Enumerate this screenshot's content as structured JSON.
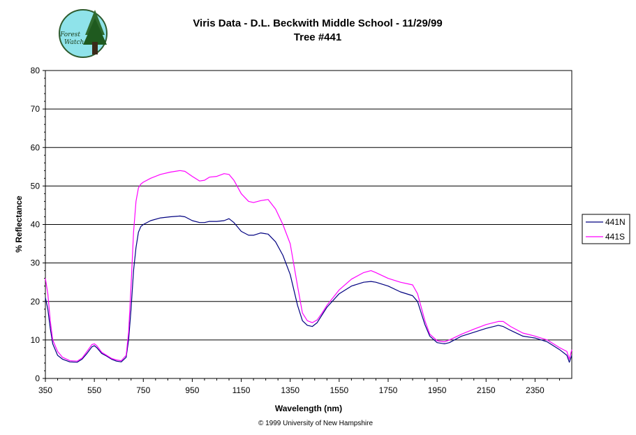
{
  "logo": {
    "line1": "Forest",
    "line2": "Watch"
  },
  "footer": "© 1999 University of New Hampshire",
  "chart_data": {
    "type": "line",
    "title": "Viris Data - D.L. Beckwith Middle School - 11/29/99",
    "subtitle": "Tree #441",
    "xlabel": "Wavelength (nm)",
    "ylabel": "% Reflectance",
    "xlim": [
      350,
      2500
    ],
    "ylim": [
      0,
      80
    ],
    "xticks": [
      350,
      550,
      750,
      950,
      1150,
      1350,
      1550,
      1750,
      1950,
      2150,
      2350
    ],
    "yticks": [
      0,
      10,
      20,
      30,
      40,
      50,
      60,
      70,
      80
    ],
    "grid": "horizontal major lines",
    "legend_position": "right",
    "series": [
      {
        "name": "441N",
        "color": "#000080",
        "x": [
          350,
          360,
          370,
          380,
          400,
          420,
          450,
          480,
          500,
          520,
          540,
          550,
          560,
          580,
          600,
          620,
          640,
          660,
          680,
          690,
          700,
          710,
          720,
          730,
          740,
          750,
          780,
          820,
          860,
          900,
          920,
          950,
          980,
          1000,
          1020,
          1050,
          1080,
          1100,
          1120,
          1150,
          1180,
          1200,
          1230,
          1260,
          1290,
          1320,
          1350,
          1380,
          1400,
          1420,
          1440,
          1460,
          1480,
          1500,
          1550,
          1600,
          1650,
          1680,
          1700,
          1750,
          1800,
          1850,
          1870,
          1900,
          1920,
          1950,
          1980,
          2000,
          2050,
          2100,
          2150,
          2200,
          2220,
          2250,
          2300,
          2350,
          2400,
          2450,
          2480,
          2490,
          2500
        ],
        "values": [
          21,
          18,
          13,
          9,
          6,
          5,
          4.3,
          4.2,
          5,
          6.5,
          8.2,
          8.5,
          8,
          6.5,
          5.8,
          5,
          4.5,
          4.3,
          5.5,
          10,
          18,
          28,
          34,
          38,
          39.5,
          40,
          41,
          41.7,
          42,
          42.2,
          42,
          41,
          40.5,
          40.5,
          40.8,
          40.8,
          41,
          41.5,
          40.5,
          38.2,
          37.2,
          37.2,
          37.8,
          37.5,
          35.5,
          32,
          27,
          19,
          15,
          13.8,
          13.5,
          14.5,
          16.5,
          18.5,
          22,
          24,
          25,
          25.2,
          25,
          24,
          22.5,
          21.5,
          20,
          14,
          11,
          9.3,
          9,
          9.3,
          11,
          12,
          13,
          13.8,
          13.5,
          12.5,
          11,
          10.5,
          9.5,
          7.5,
          6,
          4.2,
          6
        ]
      },
      {
        "name": "441S",
        "color": "#ff00ff",
        "x": [
          350,
          360,
          370,
          380,
          400,
          420,
          450,
          480,
          500,
          520,
          540,
          550,
          560,
          580,
          600,
          620,
          640,
          660,
          680,
          690,
          700,
          710,
          720,
          730,
          740,
          750,
          780,
          820,
          860,
          900,
          920,
          950,
          980,
          1000,
          1020,
          1050,
          1080,
          1100,
          1120,
          1150,
          1180,
          1200,
          1230,
          1260,
          1290,
          1320,
          1350,
          1380,
          1400,
          1420,
          1440,
          1460,
          1480,
          1500,
          1550,
          1600,
          1650,
          1680,
          1700,
          1750,
          1800,
          1850,
          1870,
          1900,
          1920,
          1950,
          1980,
          2000,
          2050,
          2100,
          2150,
          2200,
          2220,
          2250,
          2300,
          2350,
          2400,
          2450,
          2480,
          2490,
          2500
        ],
        "values": [
          26,
          22,
          15,
          10,
          7,
          5.5,
          4.6,
          4.5,
          5.3,
          7,
          8.8,
          9,
          8.5,
          6.8,
          6,
          5.2,
          4.8,
          4.6,
          6,
          12,
          24,
          38,
          46,
          49.5,
          50.5,
          51,
          52,
          53,
          53.6,
          54,
          53.8,
          52.5,
          51.3,
          51.5,
          52.3,
          52.5,
          53.2,
          53,
          51.5,
          48,
          46,
          45.7,
          46.2,
          46.5,
          44,
          40,
          35,
          24,
          17,
          15,
          14.5,
          15.2,
          17,
          19,
          23,
          25.8,
          27.5,
          28,
          27.5,
          26,
          25,
          24.3,
          22,
          15,
          11.5,
          9.8,
          9.5,
          10,
          11.5,
          12.8,
          14,
          14.8,
          14.8,
          13.5,
          11.8,
          11,
          10,
          8,
          7,
          5,
          7.5
        ]
      }
    ]
  }
}
